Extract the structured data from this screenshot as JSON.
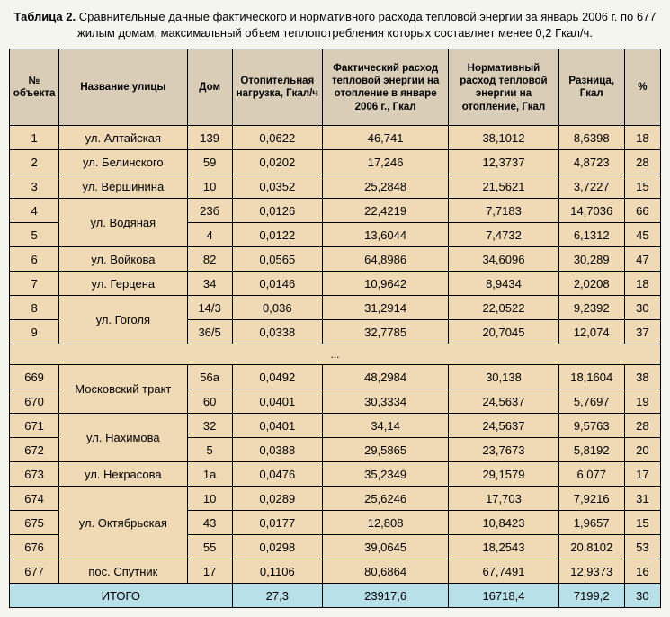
{
  "title_bold": "Таблица 2.",
  "title_rest": " Сравнительные данные фактического и нормативного расхода тепловой энергии за январь 2006 г. по 677 жилым домам, максимальный объем теплопотребления которых составляет менее 0,2 Гкал/ч.",
  "columns": [
    "№ объекта",
    "Название улицы",
    "Дом",
    "Отопительная нагрузка, Гкал/ч",
    "Фактический расход тепловой энергии на отопление в январе 2006 г., Гкал",
    "Нормативный расход тепловой энергии на отопление, Гкал",
    "Разница, Гкал",
    "%"
  ],
  "rows_top": [
    {
      "n": "1",
      "street": "ул. Алтайская",
      "span": 1,
      "dom": "139",
      "load": "0,0622",
      "fact": "46,741",
      "norm": "38,1012",
      "diff": "8,6398",
      "pct": "18"
    },
    {
      "n": "2",
      "street": "ул. Белинского",
      "span": 1,
      "dom": "59",
      "load": "0,0202",
      "fact": "17,246",
      "norm": "12,3737",
      "diff": "4,8723",
      "pct": "28"
    },
    {
      "n": "3",
      "street": "ул. Вершинина",
      "span": 1,
      "dom": "10",
      "load": "0,0352",
      "fact": "25,2848",
      "norm": "21,5621",
      "diff": "3,7227",
      "pct": "15"
    },
    {
      "n": "4",
      "street": "ул. Водяная",
      "span": 2,
      "dom": "23б",
      "load": "0,0126",
      "fact": "22,4219",
      "norm": "7,7183",
      "diff": "14,7036",
      "pct": "66"
    },
    {
      "n": "5",
      "street": null,
      "dom": "4",
      "load": "0,0122",
      "fact": "13,6044",
      "norm": "7,4732",
      "diff": "6,1312",
      "pct": "45"
    },
    {
      "n": "6",
      "street": "ул. Войкова",
      "span": 1,
      "dom": "82",
      "load": "0,0565",
      "fact": "64,8986",
      "norm": "34,6096",
      "diff": "30,289",
      "pct": "47"
    },
    {
      "n": "7",
      "street": "ул. Герцена",
      "span": 1,
      "dom": "34",
      "load": "0,0146",
      "fact": "10,9642",
      "norm": "8,9434",
      "diff": "2,0208",
      "pct": "18"
    },
    {
      "n": "8",
      "street": "ул. Гоголя",
      "span": 2,
      "dom": "14/3",
      "load": "0,036",
      "fact": "31,2914",
      "norm": "22,0522",
      "diff": "9,2392",
      "pct": "30"
    },
    {
      "n": "9",
      "street": null,
      "dom": "36/5",
      "load": "0,0338",
      "fact": "32,7785",
      "norm": "20,7045",
      "diff": "12,074",
      "pct": "37"
    }
  ],
  "ellipsis": "...",
  "rows_bot": [
    {
      "n": "669",
      "street": "Московский тракт",
      "span": 2,
      "dom": "56а",
      "load": "0,0492",
      "fact": "48,2984",
      "norm": "30,138",
      "diff": "18,1604",
      "pct": "38"
    },
    {
      "n": "670",
      "street": null,
      "dom": "60",
      "load": "0,0401",
      "fact": "30,3334",
      "norm": "24,5637",
      "diff": "5,7697",
      "pct": "19"
    },
    {
      "n": "671",
      "street": "ул. Нахимова",
      "span": 2,
      "dom": "32",
      "load": "0,0401",
      "fact": "34,14",
      "norm": "24,5637",
      "diff": "9,5763",
      "pct": "28"
    },
    {
      "n": "672",
      "street": null,
      "dom": "5",
      "load": "0,0388",
      "fact": "29,5865",
      "norm": "23,7673",
      "diff": "5,8192",
      "pct": "20"
    },
    {
      "n": "673",
      "street": "ул. Некрасова",
      "span": 1,
      "dom": "1а",
      "load": "0,0476",
      "fact": "35,2349",
      "norm": "29,1579",
      "diff": "6,077",
      "pct": "17"
    },
    {
      "n": "674",
      "street": "ул. Октябрьская",
      "span": 3,
      "dom": "10",
      "load": "0,0289",
      "fact": "25,6246",
      "norm": "17,703",
      "diff": "7,9216",
      "pct": "31"
    },
    {
      "n": "675",
      "street": null,
      "dom": "43",
      "load": "0,0177",
      "fact": "12,808",
      "norm": "10,8423",
      "diff": "1,9657",
      "pct": "15"
    },
    {
      "n": "676",
      "street": null,
      "dom": "55",
      "load": "0,0298",
      "fact": "39,0645",
      "norm": "18,2543",
      "diff": "20,8102",
      "pct": "53"
    },
    {
      "n": "677",
      "street": "пос. Спутник",
      "span": 1,
      "dom": "17",
      "load": "0,1106",
      "fact": "80,6864",
      "norm": "67,7491",
      "diff": "12,9373",
      "pct": "16"
    }
  ],
  "total": {
    "label": "ИТОГО",
    "load": "27,3",
    "fact": "23917,6",
    "norm": "16718,4",
    "diff": "7199,2",
    "pct": "30"
  },
  "colors": {
    "header_bg": "#d9cdb8",
    "body_bg": "#f0d9b5",
    "total_bg": "#b8e0e8",
    "border": "#000000"
  }
}
